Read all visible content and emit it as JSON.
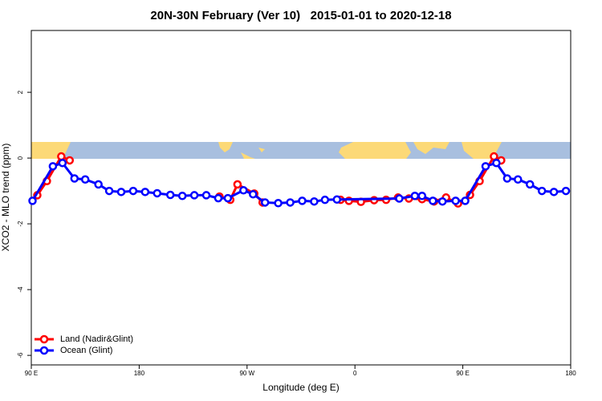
{
  "chart_data": {
    "type": "line",
    "title": "20N-30N February (Ver 10)   2015-01-01 to 2020-12-18",
    "x_label": "Longitude (deg E)",
    "y_label": "XCO2 - MLO trend (ppm)",
    "xlim": [
      90,
      540
    ],
    "ylim": [
      -6.29,
      3.88
    ],
    "xticks": [
      {
        "value": 90,
        "label": "90 E"
      },
      180,
      {
        "value": 270,
        "label": "90 W"
      },
      {
        "value": 360,
        "label": "0"
      },
      {
        "value": 450,
        "label": "90 E"
      },
      {
        "value": 540,
        "label": "180"
      }
    ],
    "yticks": [
      -6,
      -4,
      -2,
      0,
      2
    ],
    "legend": "bottom-left",
    "series": [
      {
        "name": "Land (Nadir&Glint)",
        "color": "#ff0000",
        "x": [
          95,
          103,
          115,
          122,
          185,
          247,
          256,
          262,
          276,
          283,
          315,
          348,
          355,
          365,
          376,
          386,
          396,
          405,
          416,
          426,
          436,
          446,
          456,
          464,
          476,
          482
        ],
        "values": [
          -1.13,
          -0.7,
          0.05,
          -0.07,
          null,
          -1.17,
          -1.27,
          -0.8,
          -1.08,
          -1.35,
          null,
          -1.27,
          -1.3,
          -1.33,
          -1.28,
          -1.27,
          -1.2,
          -1.23,
          -1.25,
          -1.32,
          -1.2,
          -1.38,
          -1.12,
          -0.7,
          0.05,
          -0.07
        ]
      },
      {
        "name": "Ocean (Glint)",
        "color": "#0000ff",
        "x": [
          91,
          108,
          116,
          126,
          135,
          146,
          155,
          165,
          175,
          185,
          195,
          206,
          216,
          226,
          236,
          246,
          254,
          267,
          275,
          285,
          296,
          306,
          316,
          326,
          335,
          345,
          397,
          410,
          416,
          425,
          433,
          444,
          452,
          469,
          478,
          487,
          496,
          506,
          516,
          526,
          536
        ],
        "values": [
          -1.3,
          -0.25,
          -0.15,
          -0.62,
          -0.65,
          -0.8,
          -1.0,
          -1.03,
          -1.0,
          -1.03,
          -1.07,
          -1.12,
          -1.15,
          -1.13,
          -1.13,
          -1.22,
          -1.22,
          -0.98,
          -1.1,
          -1.35,
          -1.37,
          -1.35,
          -1.3,
          -1.32,
          -1.27,
          -1.26,
          -1.23,
          -1.15,
          -1.15,
          -1.3,
          -1.32,
          -1.3,
          -1.3,
          -0.25,
          -0.15,
          -0.62,
          -0.65,
          -0.8,
          -1.0,
          -1.03,
          -1.0
        ]
      }
    ]
  }
}
